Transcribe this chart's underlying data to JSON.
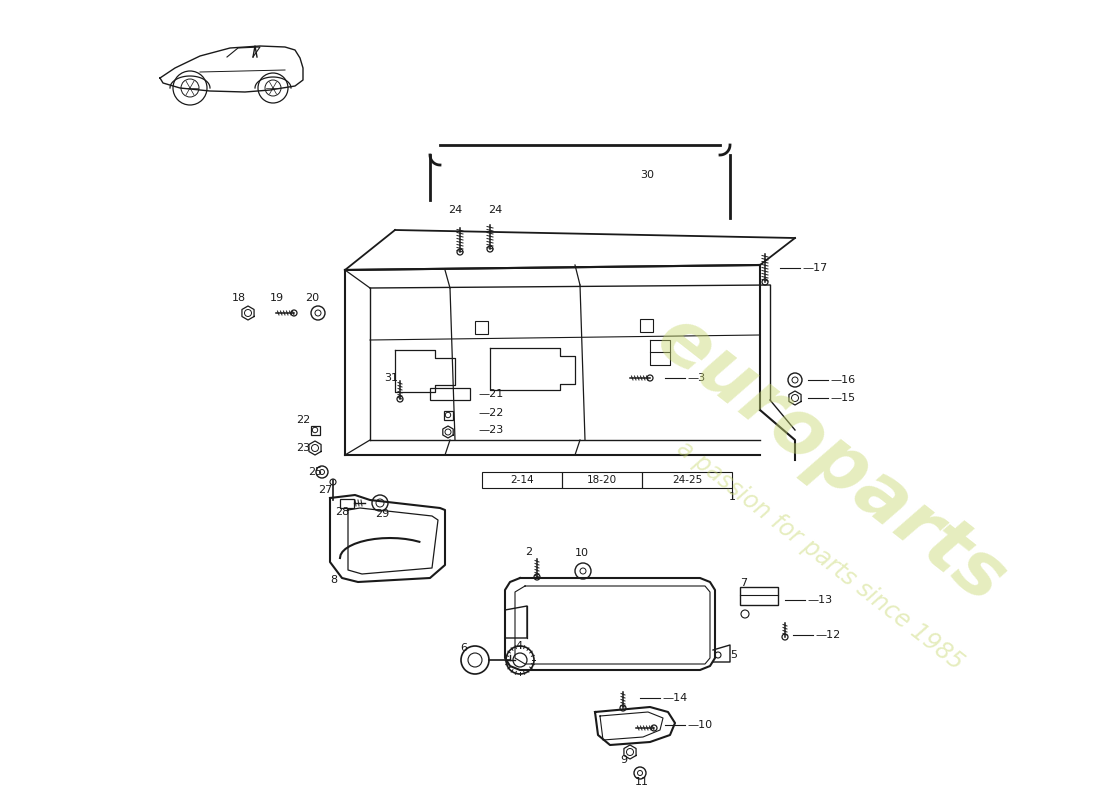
{
  "bg": "#ffffff",
  "lc": "#1a1a1a",
  "wm1": "europarts",
  "wm2": "a passion for parts since 1985",
  "wm_col": "#c8d870",
  "wm_alpha": 0.45,
  "table_labels": [
    "2-14",
    "18-20",
    "24-25"
  ],
  "table_ref": "1"
}
